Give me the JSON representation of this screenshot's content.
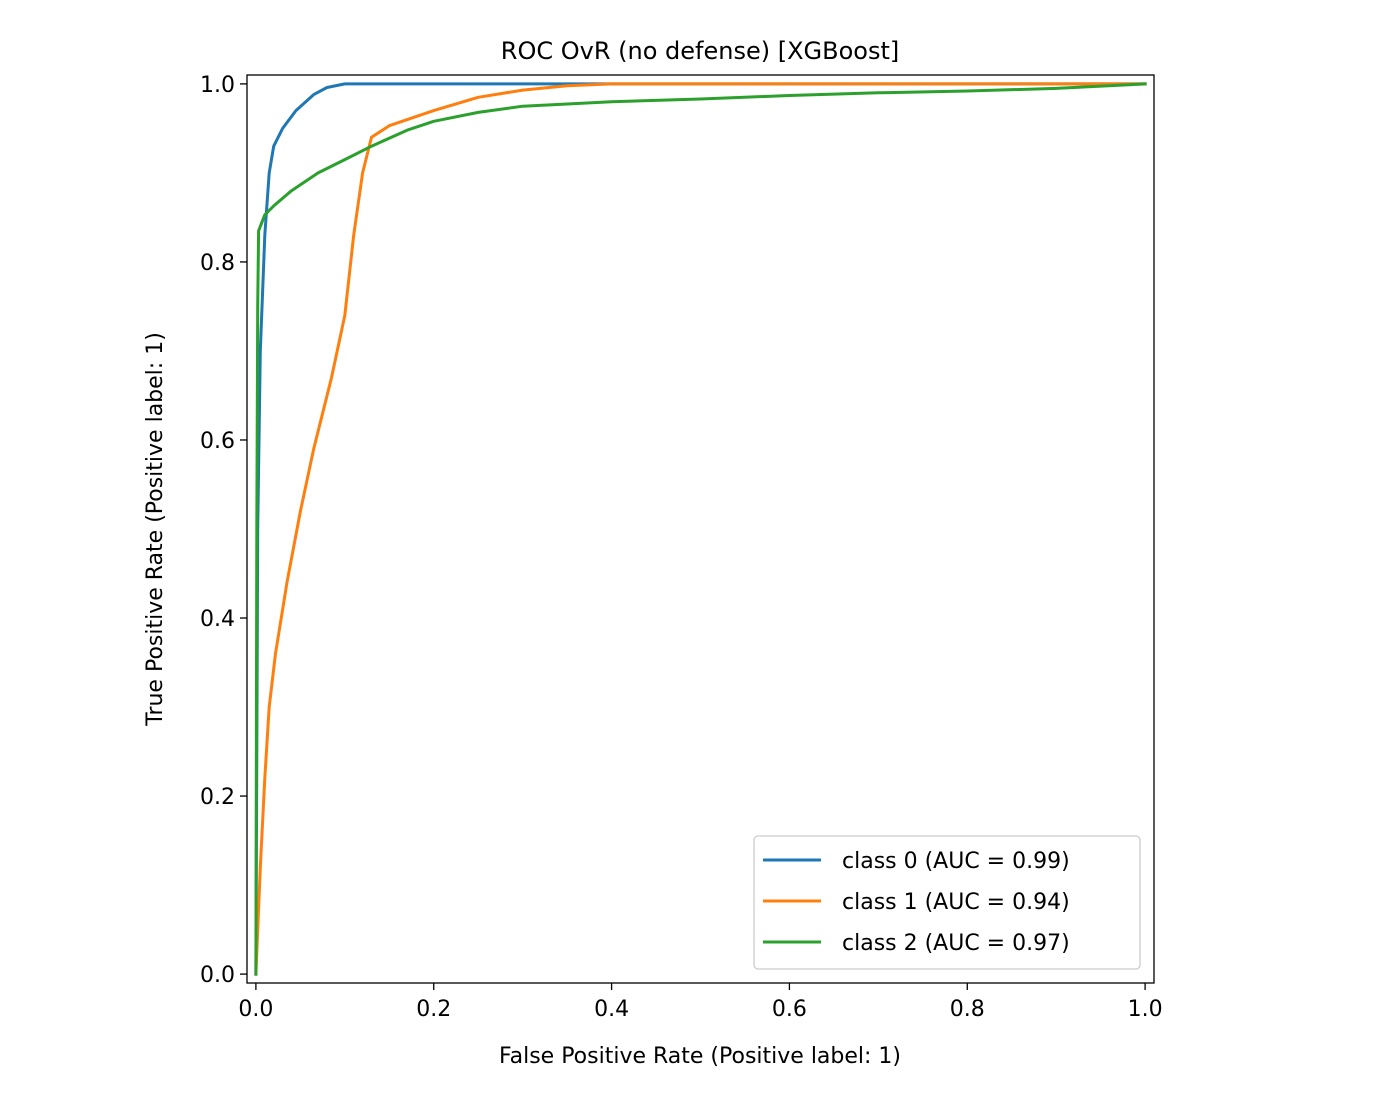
{
  "chart_data": {
    "type": "line",
    "title": "ROC OvR (no defense) [XGBoost]",
    "xlabel": "False Positive Rate (Positive label: 1)",
    "ylabel": "True Positive Rate (Positive label: 1)",
    "xlim": [
      -0.01,
      1.01
    ],
    "ylim": [
      -0.01,
      1.01
    ],
    "xticks": [
      0.0,
      0.2,
      0.4,
      0.6,
      0.8,
      1.0
    ],
    "xtick_labels": [
      "0.0",
      "0.2",
      "0.4",
      "0.6",
      "0.8",
      "1.0"
    ],
    "yticks": [
      0.0,
      0.2,
      0.4,
      0.6,
      0.8,
      1.0
    ],
    "ytick_labels": [
      "0.0",
      "0.2",
      "0.4",
      "0.6",
      "0.8",
      "1.0"
    ],
    "grid": false,
    "legend_position": "lower-right",
    "series": [
      {
        "name": "class 0 (AUC = 0.99)",
        "color": "#1f77b4",
        "points": [
          [
            0,
            0
          ],
          [
            0.002,
            0.5
          ],
          [
            0.005,
            0.7
          ],
          [
            0.01,
            0.83
          ],
          [
            0.015,
            0.9
          ],
          [
            0.02,
            0.93
          ],
          [
            0.03,
            0.95
          ],
          [
            0.045,
            0.97
          ],
          [
            0.065,
            0.988
          ],
          [
            0.08,
            0.996
          ],
          [
            0.1,
            1.0
          ],
          [
            0.4,
            1.0
          ],
          [
            1.0,
            1.0
          ]
        ]
      },
      {
        "name": "class 1 (AUC = 0.94)",
        "color": "#ff7f0e",
        "points": [
          [
            0,
            0
          ],
          [
            0.005,
            0.12
          ],
          [
            0.01,
            0.22
          ],
          [
            0.015,
            0.3
          ],
          [
            0.022,
            0.36
          ],
          [
            0.035,
            0.44
          ],
          [
            0.05,
            0.52
          ],
          [
            0.065,
            0.59
          ],
          [
            0.085,
            0.67
          ],
          [
            0.1,
            0.74
          ],
          [
            0.11,
            0.83
          ],
          [
            0.12,
            0.9
          ],
          [
            0.13,
            0.94
          ],
          [
            0.15,
            0.953
          ],
          [
            0.2,
            0.97
          ],
          [
            0.25,
            0.985
          ],
          [
            0.3,
            0.993
          ],
          [
            0.35,
            0.998
          ],
          [
            0.4,
            1.0
          ],
          [
            1.0,
            1.0
          ]
        ]
      },
      {
        "name": "class 2 (AUC = 0.97)",
        "color": "#2ca02c",
        "points": [
          [
            0,
            0
          ],
          [
            0.001,
            0.5
          ],
          [
            0.002,
            0.75
          ],
          [
            0.003,
            0.835
          ],
          [
            0.01,
            0.853
          ],
          [
            0.02,
            0.863
          ],
          [
            0.04,
            0.88
          ],
          [
            0.07,
            0.9
          ],
          [
            0.1,
            0.915
          ],
          [
            0.13,
            0.93
          ],
          [
            0.17,
            0.948
          ],
          [
            0.2,
            0.958
          ],
          [
            0.25,
            0.968
          ],
          [
            0.3,
            0.975
          ],
          [
            0.4,
            0.98
          ],
          [
            0.5,
            0.983
          ],
          [
            0.6,
            0.987
          ],
          [
            0.7,
            0.99
          ],
          [
            0.8,
            0.992
          ],
          [
            0.9,
            0.995
          ],
          [
            1.0,
            1.0
          ]
        ]
      }
    ]
  }
}
